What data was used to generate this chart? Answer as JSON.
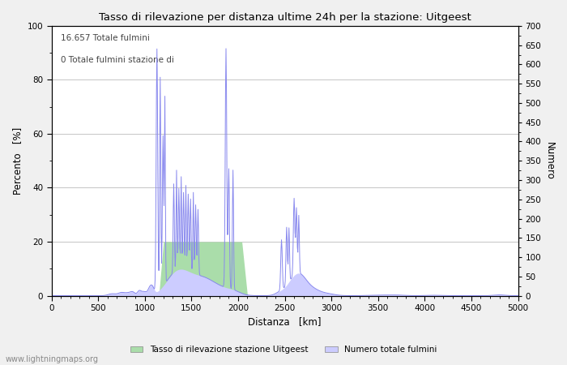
{
  "title": "Tasso di rilevazione per distanza ultime 24h per la stazione: Uitgeest",
  "xlabel": "Distanza   [km]",
  "ylabel_left": "Percento   [%]",
  "ylabel_right": "Numero",
  "annotation_line1": "16.657 Totale fulmini",
  "annotation_line2": "0 Totale fulmini stazione di",
  "xlim": [
    0,
    5000
  ],
  "ylim_left": [
    0,
    100
  ],
  "ylim_right": [
    0,
    700
  ],
  "xticks": [
    0,
    500,
    1000,
    1500,
    2000,
    2500,
    3000,
    3500,
    4000,
    4500,
    5000
  ],
  "yticks_left": [
    0,
    20,
    40,
    60,
    80,
    100
  ],
  "yticks_right": [
    0,
    50,
    100,
    150,
    200,
    250,
    300,
    350,
    400,
    450,
    500,
    550,
    600,
    650,
    700
  ],
  "legend_label_green": "Tasso di rilevazione stazione Uitgeest",
  "legend_label_blue": "Numero totale fulmini",
  "watermark": "www.lightningmaps.org",
  "line_color": "#8888ee",
  "fill_green_color": "#aaddaa",
  "fill_blue_color": "#ccccff",
  "background_color": "#f0f0f0",
  "plot_bg_color": "#ffffff",
  "grid_color": "#bbbbbb"
}
